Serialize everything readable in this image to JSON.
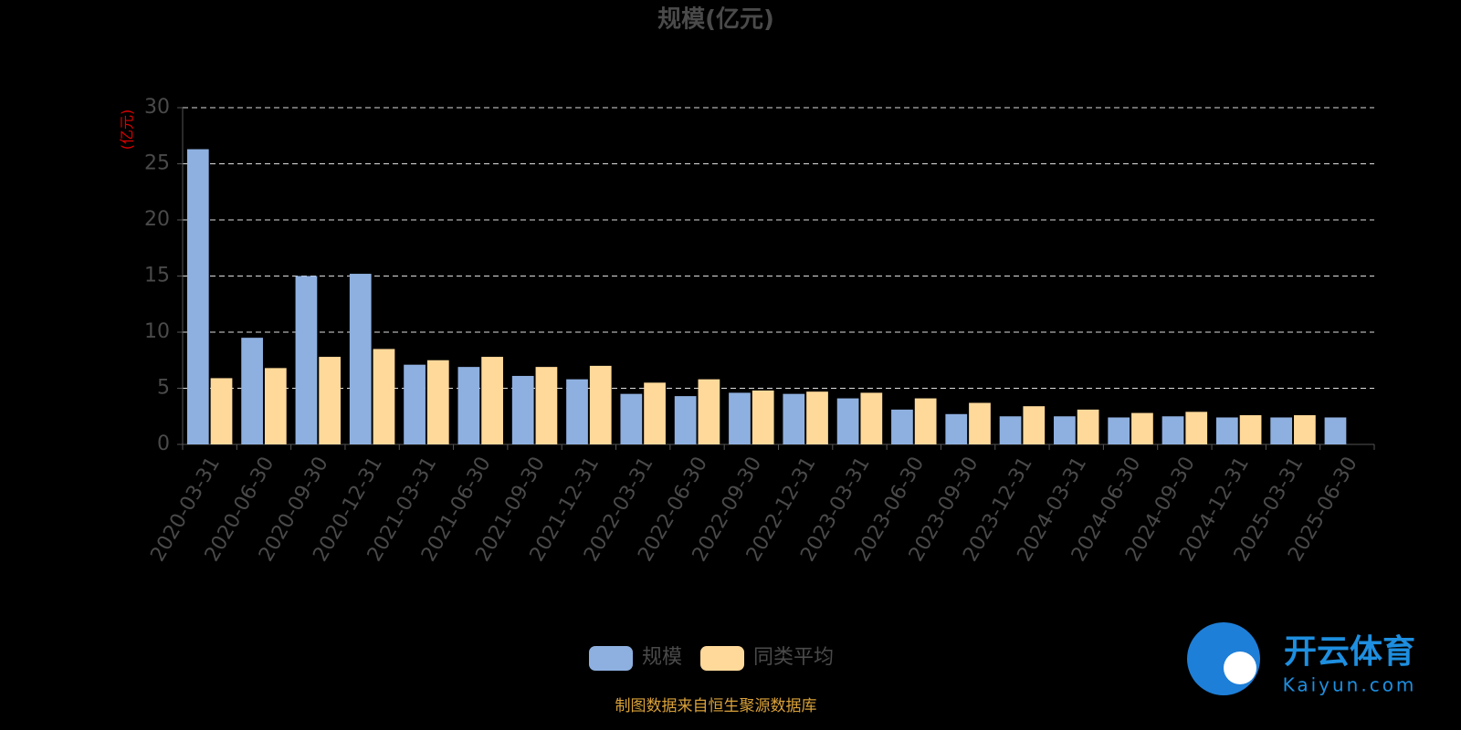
{
  "chart_data": {
    "type": "bar",
    "title": "规模(亿元)",
    "y_label": "(亿元)",
    "categories": [
      "2020-03-31",
      "2020-06-30",
      "2020-09-30",
      "2020-12-31",
      "2021-03-31",
      "2021-06-30",
      "2021-09-30",
      "2021-12-31",
      "2022-03-31",
      "2022-06-30",
      "2022-09-30",
      "2022-12-31",
      "2023-03-31",
      "2023-06-30",
      "2023-09-30",
      "2023-12-31",
      "2024-03-31",
      "2024-06-30",
      "2024-09-30",
      "2024-12-31",
      "2025-03-31",
      "2025-06-30"
    ],
    "series": [
      {
        "name": "规模",
        "color": "#8eb0e0",
        "values": [
          26.3,
          9.5,
          15.0,
          15.2,
          7.1,
          6.9,
          6.1,
          5.8,
          4.5,
          4.3,
          4.6,
          4.5,
          4.1,
          3.1,
          2.7,
          2.5,
          2.5,
          2.4,
          2.5,
          2.4,
          2.4,
          2.4
        ]
      },
      {
        "name": "同类平均",
        "color": "#ffd99a",
        "values": [
          5.9,
          6.8,
          7.8,
          8.5,
          7.5,
          7.8,
          6.9,
          7.0,
          5.5,
          5.8,
          4.8,
          4.7,
          4.6,
          4.1,
          3.7,
          3.4,
          3.1,
          2.8,
          2.9,
          2.6,
          2.6,
          null
        ]
      }
    ],
    "ylim": [
      0,
      30
    ],
    "yticks": [
      0,
      5,
      10,
      15,
      20,
      25,
      30
    ],
    "grid": true,
    "legend": "bottom",
    "source": "制图数据来自恒生聚源数据库"
  },
  "watermark": {
    "name": "开云体育",
    "url": "Kaiyun.com"
  }
}
